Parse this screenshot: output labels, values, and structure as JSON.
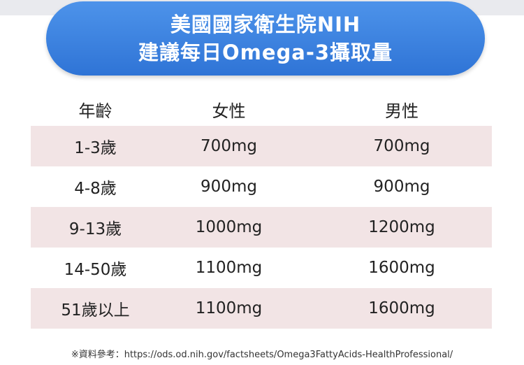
{
  "title": {
    "line1": "美國國家衛生院NIH",
    "line2": "建議每日Omega-3攝取量"
  },
  "table": {
    "headers": [
      "年齡",
      "女性",
      "男性"
    ],
    "rows": [
      {
        "age": "1-3歲",
        "female": "700mg",
        "male": "700mg"
      },
      {
        "age": "4-8歲",
        "female": "900mg",
        "male": "900mg"
      },
      {
        "age": "9-13歲",
        "female": "1000mg",
        "male": "1200mg"
      },
      {
        "age": "14-50歲",
        "female": "1100mg",
        "male": "1600mg"
      },
      {
        "age": "51歲以上",
        "female": "1100mg",
        "male": "1600mg"
      }
    ]
  },
  "footnote": "※資料參考：https://ods.od.nih.gov/factsheets/Omega3FattyAcids-HealthProfessional/"
}
